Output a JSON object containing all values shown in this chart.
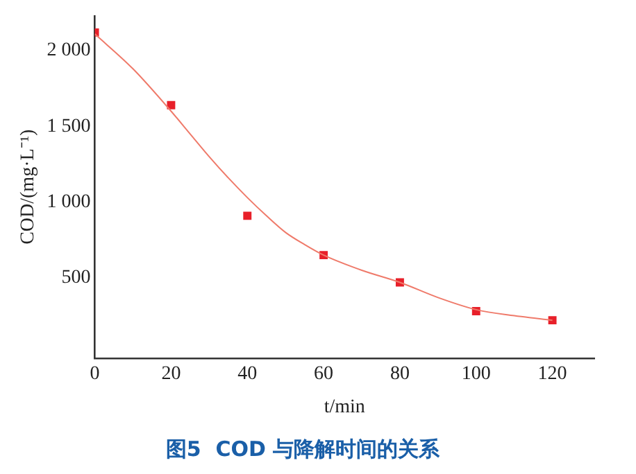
{
  "chart_data": {
    "type": "scatter",
    "title": "图5  COD 与降解时间的关系",
    "xlabel": "t/min",
    "ylabel": "COD/(mg·L⁻¹)",
    "xlim": [
      0,
      131
    ],
    "xticks": [
      0,
      20,
      40,
      60,
      80,
      100,
      120
    ],
    "ylim": [
      -30,
      2230
    ],
    "yticks": [
      500,
      {
        "value": 1000,
        "label": "1 000"
      },
      {
        "value": 1500,
        "label": "1 500"
      },
      {
        "value": 2000,
        "label": "2 000"
      }
    ],
    "grid": false,
    "legend": false,
    "series": [
      {
        "color": "#e8202a",
        "marker": "square",
        "x": [
          0,
          20,
          40,
          60,
          80,
          100,
          120
        ],
        "values": [
          2120,
          1640,
          910,
          650,
          470,
          280,
          220
        ]
      },
      {
        "type": "line",
        "color": "#ef7a6a",
        "marker": "none",
        "x": [
          0,
          10,
          20,
          25,
          30,
          35,
          40,
          45,
          50,
          55,
          60,
          70,
          80,
          90,
          100,
          110,
          120
        ],
        "values": [
          2110,
          1880,
          1600,
          1450,
          1300,
          1160,
          1030,
          910,
          800,
          720,
          650,
          550,
          470,
          370,
          290,
          250,
          220
        ]
      }
    ]
  }
}
